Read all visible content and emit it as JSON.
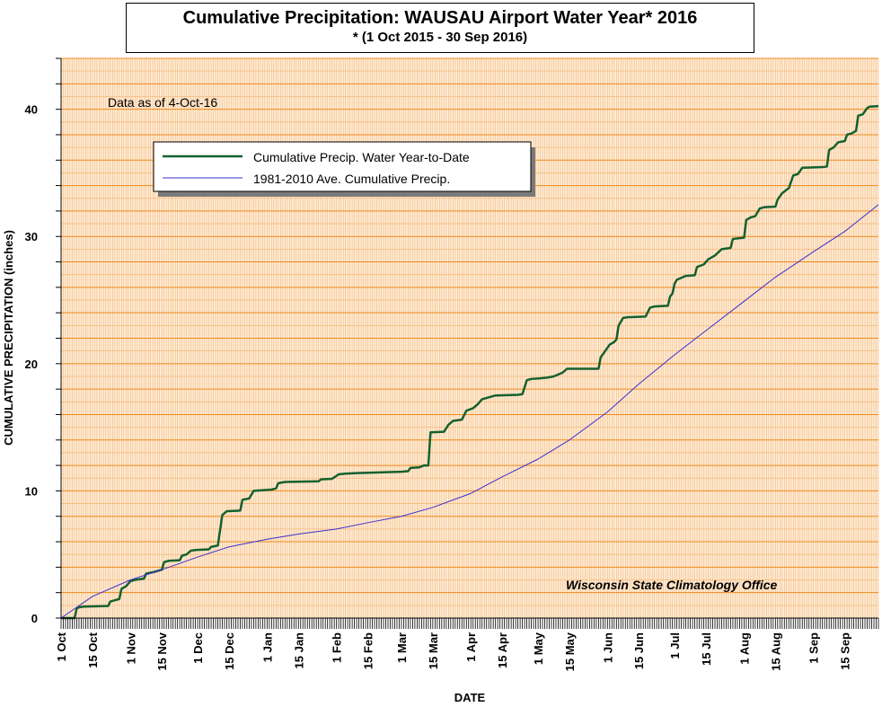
{
  "header": {
    "title": "Cumulative Precipitation: WAUSAU Airport Water Year* 2016",
    "subtitle": "* (1 Oct 2015 - 30 Sep 2016)"
  },
  "annotations": {
    "data_as_of": "Data as of 4-Oct-16",
    "credit": "Wisconsin State Climatology Office"
  },
  "colors": {
    "plot_background": "#fdebd6",
    "grid_minor": "#f6b97a",
    "grid_major": "#f08a1c",
    "actual_series": "#14612f",
    "normal_series": "#3b2fd0"
  },
  "chart_data": {
    "type": "line",
    "title": "Cumulative Precipitation: WAUSAU Airport Water Year* 2016",
    "subtitle": "* (1 Oct 2015 - 30 Sep 2016)",
    "xlabel": "DATE",
    "ylabel": "CUMULATIVE PRECIPITATION (inches)",
    "ylim": [
      0,
      44
    ],
    "yticks": [
      0,
      10,
      20,
      30,
      40
    ],
    "xlim": [
      "2015-10-01",
      "2016-09-30"
    ],
    "xticks": [
      {
        "date": "2015-10-01",
        "label": "1 Oct"
      },
      {
        "date": "2015-10-15",
        "label": "15 Oct"
      },
      {
        "date": "2015-11-01",
        "label": "1 Nov"
      },
      {
        "date": "2015-11-15",
        "label": "15 Nov"
      },
      {
        "date": "2015-12-01",
        "label": "1 Dec"
      },
      {
        "date": "2015-12-15",
        "label": "15 Dec"
      },
      {
        "date": "2016-01-01",
        "label": "1 Jan"
      },
      {
        "date": "2016-01-15",
        "label": "15 Jan"
      },
      {
        "date": "2016-02-01",
        "label": "1 Feb"
      },
      {
        "date": "2016-02-15",
        "label": "15 Feb"
      },
      {
        "date": "2016-03-01",
        "label": "1 Mar"
      },
      {
        "date": "2016-03-15",
        "label": "15 Mar"
      },
      {
        "date": "2016-04-01",
        "label": "1 Apr"
      },
      {
        "date": "2016-04-15",
        "label": "15 Apr"
      },
      {
        "date": "2016-05-01",
        "label": "1 May"
      },
      {
        "date": "2016-05-15",
        "label": "15 May"
      },
      {
        "date": "2016-06-01",
        "label": "1 Jun"
      },
      {
        "date": "2016-06-15",
        "label": "15 Jun"
      },
      {
        "date": "2016-07-01",
        "label": "1 Jul"
      },
      {
        "date": "2016-07-15",
        "label": "15 Jul"
      },
      {
        "date": "2016-08-01",
        "label": "1 Aug"
      },
      {
        "date": "2016-08-15",
        "label": "15 Aug"
      },
      {
        "date": "2016-09-01",
        "label": "1 Sep"
      },
      {
        "date": "2016-09-15",
        "label": "15 Sep"
      }
    ],
    "grid": true,
    "legend_position": "upper-left",
    "series": [
      {
        "name": "Cumulative Precip.  Water Year-to-Date",
        "color": "#14612f",
        "points": [
          [
            "2015-10-01",
            0
          ],
          [
            "2015-10-07",
            0
          ],
          [
            "2015-10-08",
            0.75
          ],
          [
            "2015-10-09",
            0.85
          ],
          [
            "2015-10-11",
            0.9
          ],
          [
            "2015-10-22",
            0.95
          ],
          [
            "2015-10-23",
            1.3
          ],
          [
            "2015-10-27",
            1.5
          ],
          [
            "2015-10-28",
            2.3
          ],
          [
            "2015-10-30",
            2.5
          ],
          [
            "2015-11-01",
            2.9
          ],
          [
            "2015-11-03",
            3.0
          ],
          [
            "2015-11-07",
            3.1
          ],
          [
            "2015-11-08",
            3.5
          ],
          [
            "2015-11-11",
            3.6
          ],
          [
            "2015-11-15",
            3.8
          ],
          [
            "2015-11-16",
            4.4
          ],
          [
            "2015-11-18",
            4.5
          ],
          [
            "2015-11-23",
            4.55
          ],
          [
            "2015-11-24",
            4.9
          ],
          [
            "2015-11-26",
            5.0
          ],
          [
            "2015-11-28",
            5.3
          ],
          [
            "2015-11-30",
            5.35
          ],
          [
            "2015-12-06",
            5.4
          ],
          [
            "2015-12-07",
            5.6
          ],
          [
            "2015-12-10",
            5.7
          ],
          [
            "2015-12-12",
            8.1
          ],
          [
            "2015-12-14",
            8.4
          ],
          [
            "2015-12-20",
            8.45
          ],
          [
            "2015-12-21",
            9.3
          ],
          [
            "2015-12-24",
            9.4
          ],
          [
            "2015-12-26",
            10.0
          ],
          [
            "2016-01-03",
            10.1
          ],
          [
            "2016-01-05",
            10.2
          ],
          [
            "2016-01-06",
            10.6
          ],
          [
            "2016-01-09",
            10.7
          ],
          [
            "2016-01-24",
            10.75
          ],
          [
            "2016-01-25",
            10.9
          ],
          [
            "2016-01-30",
            10.95
          ],
          [
            "2016-02-02",
            11.3
          ],
          [
            "2016-02-05",
            11.35
          ],
          [
            "2016-02-10",
            11.4
          ],
          [
            "2016-02-20",
            11.45
          ],
          [
            "2016-03-01",
            11.5
          ],
          [
            "2016-03-04",
            11.55
          ],
          [
            "2016-03-05",
            11.8
          ],
          [
            "2016-03-09",
            11.85
          ],
          [
            "2016-03-11",
            12.0
          ],
          [
            "2016-03-13",
            12.0
          ],
          [
            "2016-03-14",
            14.6
          ],
          [
            "2016-03-20",
            14.65
          ],
          [
            "2016-03-22",
            15.2
          ],
          [
            "2016-03-24",
            15.5
          ],
          [
            "2016-03-28",
            15.6
          ],
          [
            "2016-03-30",
            16.3
          ],
          [
            "2016-04-02",
            16.5
          ],
          [
            "2016-04-04",
            16.8
          ],
          [
            "2016-04-06",
            17.2
          ],
          [
            "2016-04-09",
            17.35
          ],
          [
            "2016-04-12",
            17.5
          ],
          [
            "2016-04-22",
            17.55
          ],
          [
            "2016-04-24",
            17.6
          ],
          [
            "2016-04-26",
            18.7
          ],
          [
            "2016-04-28",
            18.8
          ],
          [
            "2016-05-02",
            18.85
          ],
          [
            "2016-05-05",
            18.9
          ],
          [
            "2016-05-08",
            19.0
          ],
          [
            "2016-05-12",
            19.3
          ],
          [
            "2016-05-14",
            19.6
          ],
          [
            "2016-05-28",
            19.6
          ],
          [
            "2016-05-29",
            20.5
          ],
          [
            "2016-05-31",
            21.0
          ],
          [
            "2016-06-02",
            21.5
          ],
          [
            "2016-06-04",
            21.7
          ],
          [
            "2016-06-05",
            21.9
          ],
          [
            "2016-06-06",
            23.0
          ],
          [
            "2016-06-08",
            23.6
          ],
          [
            "2016-06-10",
            23.65
          ],
          [
            "2016-06-18",
            23.7
          ],
          [
            "2016-06-20",
            24.4
          ],
          [
            "2016-06-22",
            24.5
          ],
          [
            "2016-06-28",
            24.55
          ],
          [
            "2016-06-29",
            25.3
          ],
          [
            "2016-06-30",
            25.5
          ],
          [
            "2016-07-01",
            26.3
          ],
          [
            "2016-07-02",
            26.6
          ],
          [
            "2016-07-06",
            26.9
          ],
          [
            "2016-07-10",
            26.95
          ],
          [
            "2016-07-11",
            27.6
          ],
          [
            "2016-07-14",
            27.8
          ],
          [
            "2016-07-16",
            28.2
          ],
          [
            "2016-07-19",
            28.5
          ],
          [
            "2016-07-22",
            29.0
          ],
          [
            "2016-07-26",
            29.1
          ],
          [
            "2016-07-27",
            29.8
          ],
          [
            "2016-07-29",
            29.85
          ],
          [
            "2016-08-01",
            29.9
          ],
          [
            "2016-08-02",
            31.3
          ],
          [
            "2016-08-04",
            31.5
          ],
          [
            "2016-08-06",
            31.6
          ],
          [
            "2016-08-08",
            32.2
          ],
          [
            "2016-08-10",
            32.3
          ],
          [
            "2016-08-15",
            32.35
          ],
          [
            "2016-08-16",
            32.9
          ],
          [
            "2016-08-18",
            33.4
          ],
          [
            "2016-08-21",
            33.8
          ],
          [
            "2016-08-23",
            34.8
          ],
          [
            "2016-08-25",
            34.9
          ],
          [
            "2016-08-27",
            35.4
          ],
          [
            "2016-09-05",
            35.45
          ],
          [
            "2016-09-07",
            35.5
          ],
          [
            "2016-09-08",
            36.8
          ],
          [
            "2016-09-10",
            37.0
          ],
          [
            "2016-09-12",
            37.4
          ],
          [
            "2016-09-15",
            37.5
          ],
          [
            "2016-09-16",
            38.0
          ],
          [
            "2016-09-18",
            38.1
          ],
          [
            "2016-09-20",
            38.3
          ],
          [
            "2016-09-21",
            39.5
          ],
          [
            "2016-09-23",
            39.6
          ],
          [
            "2016-09-25",
            40.1
          ],
          [
            "2016-09-26",
            40.2
          ],
          [
            "2016-09-30",
            40.25
          ]
        ]
      },
      {
        "name": "1981-2010 Ave. Cumulative Precip.",
        "color": "#3b2fd0",
        "points": [
          [
            "2015-10-01",
            0
          ],
          [
            "2015-10-15",
            1.7
          ],
          [
            "2015-11-01",
            3.0
          ],
          [
            "2015-11-15",
            3.8
          ],
          [
            "2015-12-01",
            4.8
          ],
          [
            "2015-12-15",
            5.6
          ],
          [
            "2016-01-01",
            6.2
          ],
          [
            "2016-01-15",
            6.6
          ],
          [
            "2016-02-01",
            7.0
          ],
          [
            "2016-02-15",
            7.5
          ],
          [
            "2016-03-01",
            8.0
          ],
          [
            "2016-03-15",
            8.7
          ],
          [
            "2016-04-01",
            9.8
          ],
          [
            "2016-04-15",
            11.1
          ],
          [
            "2016-05-01",
            12.5
          ],
          [
            "2016-05-15",
            14.0
          ],
          [
            "2016-06-01",
            16.2
          ],
          [
            "2016-06-15",
            18.4
          ],
          [
            "2016-07-01",
            20.7
          ],
          [
            "2016-07-15",
            22.6
          ],
          [
            "2016-08-01",
            24.9
          ],
          [
            "2016-08-15",
            26.8
          ],
          [
            "2016-09-01",
            28.8
          ],
          [
            "2016-09-15",
            30.4
          ],
          [
            "2016-09-30",
            32.5
          ]
        ]
      }
    ]
  }
}
